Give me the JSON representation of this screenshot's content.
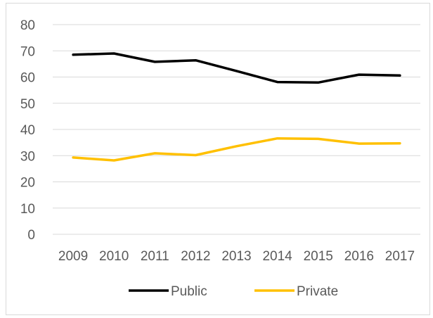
{
  "chart_data": {
    "type": "line",
    "x": [
      "2009",
      "2010",
      "2011",
      "2012",
      "2013",
      "2014",
      "2015",
      "2016",
      "2017"
    ],
    "series": [
      {
        "name": "Public",
        "color": "#000000",
        "values": [
          68.5,
          69.0,
          65.8,
          66.4,
          62.3,
          58.1,
          57.9,
          60.9,
          60.6
        ]
      },
      {
        "name": "Private",
        "color": "#FFC000",
        "values": [
          29.3,
          28.2,
          30.9,
          30.2,
          33.6,
          36.6,
          36.4,
          34.6,
          34.7
        ]
      }
    ],
    "ylim": [
      0,
      80
    ],
    "yticks": [
      "0",
      "10",
      "20",
      "30",
      "40",
      "50",
      "60",
      "70",
      "80"
    ],
    "grid": true,
    "legend_position": "bottom",
    "title": "",
    "xlabel": "",
    "ylabel": ""
  }
}
